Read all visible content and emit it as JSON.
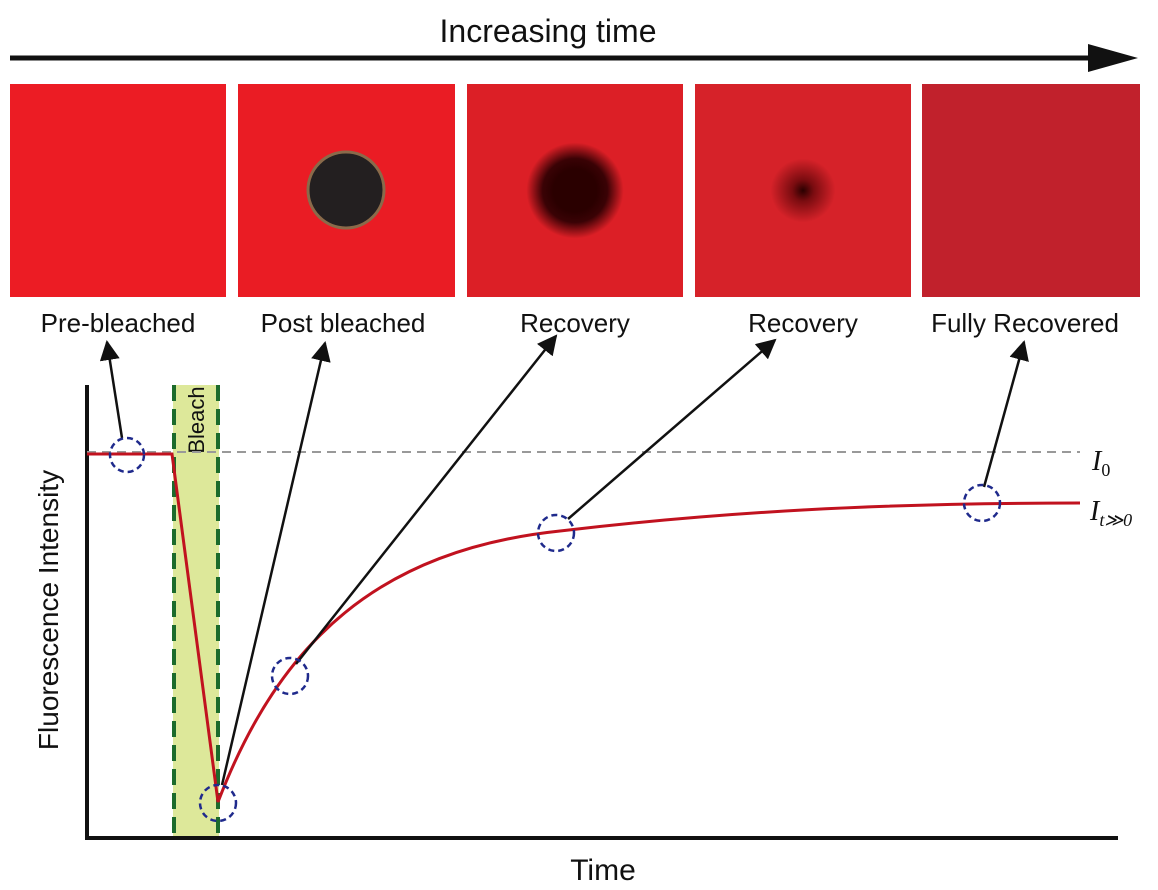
{
  "header": {
    "title": "Increasing time"
  },
  "panels": [
    {
      "label": "Pre-bleached"
    },
    {
      "label": "Post bleached"
    },
    {
      "label": "Recovery"
    },
    {
      "label": "Recovery"
    },
    {
      "label": "Fully Recovered"
    }
  ],
  "plot": {
    "bleach_label": "Bleach",
    "y_axis_label": "Fluorescence Intensity",
    "x_axis_label": "Time",
    "initial_level": {
      "symbol": "I",
      "subscript": "0"
    },
    "final_level": {
      "symbol": "I",
      "subscript": "t≫0"
    }
  }
}
